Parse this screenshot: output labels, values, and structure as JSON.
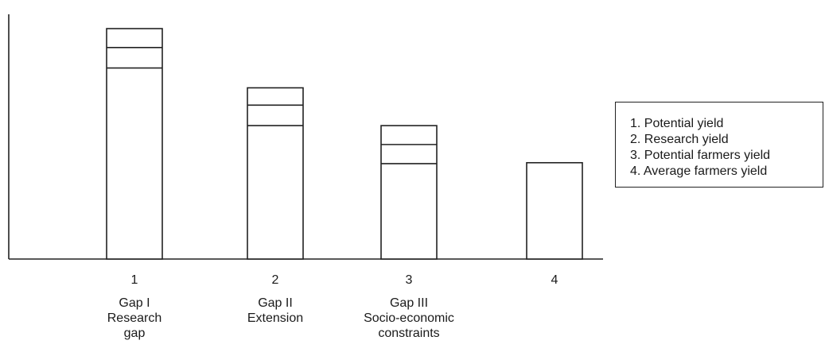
{
  "chart_data": {
    "type": "bar",
    "title": "",
    "xlabel": "",
    "ylabel": "",
    "categories": [
      "1",
      "2",
      "3",
      "4"
    ],
    "category_labels": [
      [
        "Gap I",
        "Research",
        "gap"
      ],
      [
        "Gap II",
        "Extension"
      ],
      [
        "Gap III",
        "Socio-economic",
        "constraints"
      ],
      []
    ],
    "segment_levels": [
      [
        1.0,
        0.918,
        0.829
      ],
      [
        0.743,
        0.668,
        0.579
      ],
      [
        0.579,
        0.497,
        0.414
      ],
      [
        0.418
      ]
    ],
    "ylim": [
      0,
      1.05
    ],
    "y_ticks_shown": false,
    "grid": false,
    "legend": {
      "position": "right",
      "items": [
        "1. Potential yield",
        "2. Research yield",
        "3. Potential farmers yield",
        "4. Average farmers yield"
      ]
    }
  }
}
